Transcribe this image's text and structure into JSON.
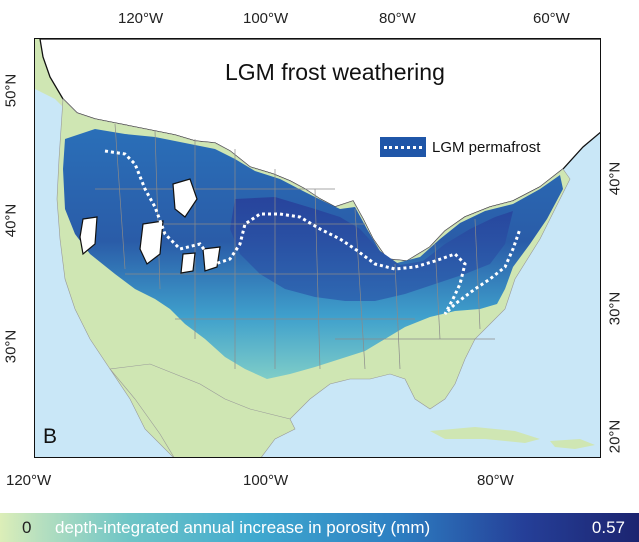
{
  "map": {
    "title": "LGM frost weathering",
    "panel_label": "B",
    "legend_label": "LGM permafrost",
    "top_ticks": [
      "120°W",
      "100°W",
      "80°W",
      "60°W"
    ],
    "bottom_ticks": [
      "120°W",
      "100°W",
      "80°W"
    ],
    "left_ticks": [
      "50°N",
      "40°N",
      "30°N"
    ],
    "right_ticks": [
      "40°N",
      "30°N",
      "20°N"
    ]
  },
  "colorbar": {
    "min": "0",
    "label": "depth-integrated annual increase in porosity (mm)",
    "max": "0.57"
  },
  "colors": {
    "ocean": "#c9e7f7",
    "land_no_weathering": "#cfe6b3",
    "low": "#6fc5c6",
    "mid": "#2d7fc2",
    "high": "#253f98",
    "ice_sheet": "#ffffff",
    "permafrost_line": "#ffffff"
  }
}
